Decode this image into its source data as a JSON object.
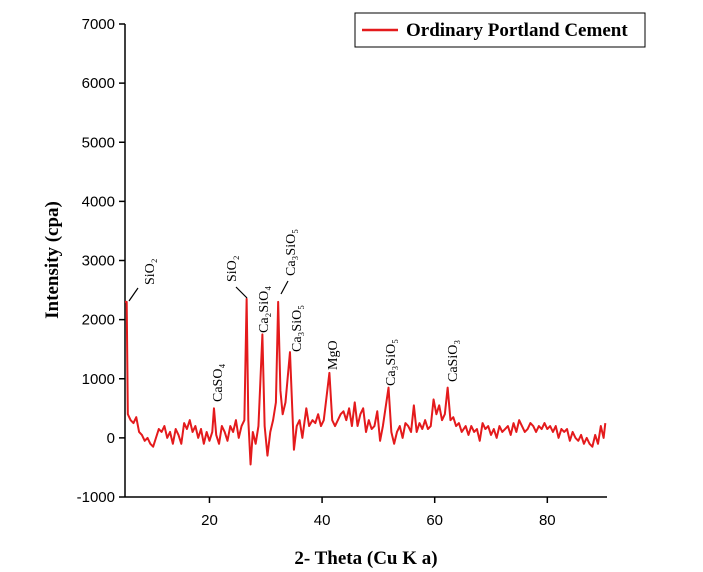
{
  "chart_data": {
    "type": "line",
    "x_label": "2- Theta (Cu K a)",
    "y_label": "Intensity (cpa)",
    "xlim": [
      5,
      90.6
    ],
    "ylim": [
      -1000,
      7000
    ],
    "xticks": [
      20,
      40,
      60,
      80
    ],
    "yticks": [
      -1000,
      0,
      1000,
      2000,
      3000,
      4000,
      5000,
      6000,
      7000
    ],
    "legend": "upper right",
    "x": [
      5.0,
      5.3,
      5.5,
      6,
      6.5,
      7,
      7.5,
      8,
      8.5,
      9,
      9.5,
      10,
      10.5,
      11,
      11.5,
      12,
      12.5,
      13,
      13.5,
      14,
      14.5,
      15,
      15.5,
      16,
      16.5,
      17,
      17.5,
      18,
      18.5,
      19,
      19.5,
      20,
      20.5,
      20.8,
      21.2,
      21.7,
      22.2,
      22.7,
      23.2,
      23.7,
      24.2,
      24.7,
      25.2,
      25.7,
      26.2,
      26.6,
      26.9,
      27.3,
      27.7,
      28.2,
      28.7,
      29.4,
      29.8,
      30.3,
      30.8,
      31.3,
      31.8,
      32.2,
      32.6,
      33,
      33.5,
      34.3,
      34.7,
      35,
      35.5,
      36,
      36.5,
      37.2,
      37.7,
      38.3,
      38.8,
      39.3,
      39.8,
      40.3,
      41.3,
      41.8,
      42.3,
      42.8,
      43.3,
      43.8,
      44.3,
      44.8,
      45.3,
      45.8,
      46.3,
      46.8,
      47.3,
      47.8,
      48.3,
      48.8,
      49.3,
      49.8,
      50.3,
      50.8,
      51.8,
      52.3,
      52.8,
      53.3,
      53.8,
      54.3,
      54.8,
      55.3,
      55.8,
      56.3,
      56.8,
      57.3,
      57.8,
      58.3,
      58.8,
      59.3,
      59.8,
      60.3,
      60.8,
      61.3,
      61.8,
      62.3,
      62.8,
      63.3,
      63.8,
      64.3,
      64.8,
      65.5,
      66,
      66.5,
      67,
      67.5,
      68,
      68.5,
      69,
      69.5,
      70,
      70.5,
      71,
      71.5,
      72,
      72.5,
      73,
      73.5,
      74,
      74.5,
      75,
      75.5,
      76,
      76.5,
      77,
      77.5,
      78,
      78.5,
      79,
      79.5,
      80,
      80.5,
      81,
      81.5,
      82,
      82.5,
      83,
      83.5,
      84,
      84.5,
      85,
      85.5,
      86,
      86.5,
      87,
      87.5,
      88,
      88.5,
      89,
      89.5,
      90,
      90.3
    ],
    "series": [
      {
        "name": "Ordinary Portland Cement",
        "color": "#e41a1c",
        "values": [
          2300,
          2300,
          400,
          300,
          250,
          350,
          100,
          50,
          -50,
          0,
          -100,
          -150,
          0,
          150,
          100,
          200,
          0,
          100,
          -100,
          150,
          50,
          -100,
          250,
          150,
          300,
          100,
          200,
          0,
          150,
          -100,
          100,
          -50,
          100,
          500,
          50,
          -100,
          200,
          100,
          -50,
          200,
          100,
          300,
          0,
          200,
          300,
          2350,
          300,
          -450,
          100,
          -100,
          200,
          1750,
          200,
          -300,
          100,
          300,
          600,
          2300,
          800,
          400,
          600,
          1450,
          500,
          -200,
          200,
          300,
          0,
          500,
          200,
          300,
          250,
          400,
          200,
          300,
          1100,
          300,
          200,
          300,
          400,
          450,
          300,
          500,
          200,
          600,
          200,
          400,
          500,
          100,
          300,
          150,
          200,
          450,
          -50,
          200,
          850,
          100,
          -100,
          100,
          200,
          0,
          250,
          200,
          100,
          550,
          100,
          250,
          150,
          300,
          150,
          200,
          650,
          400,
          550,
          300,
          400,
          850,
          300,
          350,
          200,
          250,
          100,
          200,
          50,
          200,
          100,
          150,
          -50,
          250,
          150,
          200,
          50,
          150,
          0,
          200,
          100,
          150,
          200,
          50,
          250,
          100,
          300,
          200,
          100,
          150,
          250,
          200,
          100,
          200,
          150,
          250,
          150,
          200,
          100,
          200,
          0,
          150,
          100,
          150,
          -50,
          100,
          0,
          -50,
          50,
          -100,
          0,
          -100,
          -150,
          50,
          -100,
          200,
          0,
          250
        ]
      }
    ],
    "annotations": [
      "SiO₂",
      "CaSO₄",
      "SiO₂",
      "Ca₂SiO₄",
      "Ca₃SiO₅",
      "Ca₃SiO₅",
      "MgO",
      "Ca₃SiO₅",
      "CaSiO₃"
    ]
  }
}
